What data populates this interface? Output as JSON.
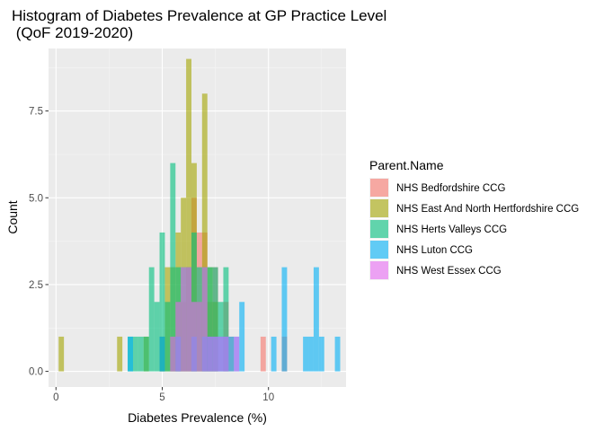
{
  "chart_data": {
    "type": "bar",
    "subtype": "histogram",
    "title": [
      "Histogram of Diabetes Prevalence at GP Practice Level",
      " (QoF 2019-2020)"
    ],
    "xlabel": "Diabetes Prevalence (%)",
    "ylabel": "Count",
    "xlim": [
      -0.35,
      13.65
    ],
    "ylim": [
      -0.45,
      9.3
    ],
    "x_ticks": [
      0,
      5,
      10
    ],
    "y_ticks": [
      0.0,
      2.5,
      5.0,
      7.5
    ],
    "y_tick_labels": [
      "0.0",
      "2.5",
      "5.0",
      "7.5"
    ],
    "bin_width": 0.25,
    "grid": true,
    "legend_position": "right",
    "legend_title": "Parent.Name",
    "series": [
      {
        "name": "NHS Bedfordshire CCG",
        "color": "#F8766D",
        "bins": [
          {
            "x": 5.0,
            "count": 1
          },
          {
            "x": 5.5,
            "count": 1
          },
          {
            "x": 5.75,
            "count": 2
          },
          {
            "x": 6.0,
            "count": 2
          },
          {
            "x": 6.25,
            "count": 3
          },
          {
            "x": 6.5,
            "count": 5
          },
          {
            "x": 6.75,
            "count": 4
          },
          {
            "x": 7.0,
            "count": 4
          },
          {
            "x": 7.25,
            "count": 2
          },
          {
            "x": 7.5,
            "count": 3
          },
          {
            "x": 8.0,
            "count": 2
          },
          {
            "x": 8.25,
            "count": 1
          },
          {
            "x": 9.75,
            "count": 1
          },
          {
            "x": 10.75,
            "count": 1
          }
        ]
      },
      {
        "name": "NHS East And North Hertfordshire CCG",
        "color": "#A3A500",
        "bins": [
          {
            "x": 0.25,
            "count": 1
          },
          {
            "x": 3.0,
            "count": 1
          },
          {
            "x": 4.25,
            "count": 1
          },
          {
            "x": 5.0,
            "count": 1
          },
          {
            "x": 5.25,
            "count": 3
          },
          {
            "x": 5.5,
            "count": 3
          },
          {
            "x": 5.75,
            "count": 4
          },
          {
            "x": 6.0,
            "count": 5
          },
          {
            "x": 6.25,
            "count": 9
          },
          {
            "x": 6.5,
            "count": 6
          },
          {
            "x": 6.75,
            "count": 2
          },
          {
            "x": 7.0,
            "count": 8
          },
          {
            "x": 7.25,
            "count": 3
          },
          {
            "x": 7.5,
            "count": 2
          }
        ]
      },
      {
        "name": "NHS Herts Valleys CCG",
        "color": "#00BF7D",
        "bins": [
          {
            "x": 3.5,
            "count": 1
          },
          {
            "x": 3.75,
            "count": 1
          },
          {
            "x": 4.0,
            "count": 1
          },
          {
            "x": 4.25,
            "count": 1
          },
          {
            "x": 4.5,
            "count": 3
          },
          {
            "x": 4.75,
            "count": 2
          },
          {
            "x": 5.0,
            "count": 4
          },
          {
            "x": 5.25,
            "count": 2
          },
          {
            "x": 5.5,
            "count": 6
          },
          {
            "x": 5.75,
            "count": 3
          },
          {
            "x": 6.0,
            "count": 3
          },
          {
            "x": 6.25,
            "count": 3
          },
          {
            "x": 6.5,
            "count": 4
          },
          {
            "x": 6.75,
            "count": 3
          },
          {
            "x": 7.0,
            "count": 3
          },
          {
            "x": 7.25,
            "count": 3
          },
          {
            "x": 7.5,
            "count": 3
          },
          {
            "x": 7.75,
            "count": 2
          },
          {
            "x": 8.0,
            "count": 3
          }
        ]
      },
      {
        "name": "NHS Luton CCG",
        "color": "#00B0F6",
        "bins": [
          {
            "x": 3.5,
            "count": 1
          },
          {
            "x": 5.0,
            "count": 1
          },
          {
            "x": 5.75,
            "count": 1
          },
          {
            "x": 6.5,
            "count": 1
          },
          {
            "x": 7.0,
            "count": 1
          },
          {
            "x": 7.25,
            "count": 1
          },
          {
            "x": 7.5,
            "count": 1
          },
          {
            "x": 7.75,
            "count": 1
          },
          {
            "x": 8.0,
            "count": 1
          },
          {
            "x": 8.25,
            "count": 1
          },
          {
            "x": 8.5,
            "count": 1
          },
          {
            "x": 8.75,
            "count": 2
          },
          {
            "x": 10.25,
            "count": 1
          },
          {
            "x": 10.75,
            "count": 3
          },
          {
            "x": 11.75,
            "count": 1
          },
          {
            "x": 12.0,
            "count": 1
          },
          {
            "x": 12.25,
            "count": 3
          },
          {
            "x": 12.5,
            "count": 1
          },
          {
            "x": 13.25,
            "count": 1
          }
        ]
      },
      {
        "name": "NHS West Essex CCG",
        "color": "#E76BF3",
        "bins": [
          {
            "x": 5.5,
            "count": 1
          },
          {
            "x": 5.75,
            "count": 2
          },
          {
            "x": 6.0,
            "count": 3
          },
          {
            "x": 6.25,
            "count": 3
          },
          {
            "x": 6.5,
            "count": 2
          },
          {
            "x": 6.75,
            "count": 2
          },
          {
            "x": 7.0,
            "count": 3
          },
          {
            "x": 7.25,
            "count": 1
          },
          {
            "x": 7.5,
            "count": 1
          },
          {
            "x": 7.75,
            "count": 1
          },
          {
            "x": 8.0,
            "count": 1
          },
          {
            "x": 8.5,
            "count": 1
          }
        ]
      }
    ]
  }
}
